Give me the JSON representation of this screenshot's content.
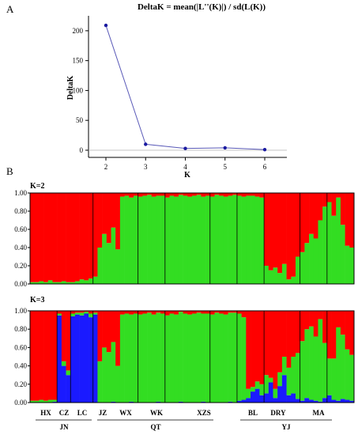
{
  "chart_data": [
    {
      "type": "line",
      "panel_label": "A",
      "title": "DeltaK = mean(|L''(K)|) / sd(L(K))",
      "xlabel": "K",
      "ylabel": "DeltaK",
      "x": [
        2,
        3,
        4,
        5,
        6
      ],
      "y": [
        209,
        10,
        3,
        4,
        1
      ],
      "xticks": [
        "2",
        "3",
        "4",
        "5",
        "6"
      ],
      "yticks": [
        0,
        50,
        100,
        150,
        200
      ],
      "ylim": [
        -12,
        225
      ],
      "line_color": "#5a5ab8",
      "point_color": "#1a1aa0"
    },
    {
      "type": "bar",
      "panel_label": "B",
      "subtitle": "K=2",
      "yticks": [
        "0.00",
        "0.20",
        "0.40",
        "0.60",
        "0.80",
        "1.00"
      ],
      "ylim": [
        0,
        1
      ],
      "cluster_colors": [
        "#33dd22",
        "#ff0000"
      ],
      "series": [
        {
          "values": [
            0.02,
            0.02,
            0.03,
            0.02,
            0.04,
            0.02,
            0.02,
            0.03,
            0.02,
            0.02,
            0.03,
            0.05,
            0.04,
            0.06,
            0.08,
            0.4,
            0.55,
            0.45,
            0.62,
            0.38,
            0.96,
            0.97,
            0.95,
            0.97,
            0.96,
            0.97,
            0.98,
            0.96,
            0.97,
            0.97,
            0.95,
            0.97,
            0.96,
            0.98,
            0.97,
            0.96,
            0.97,
            0.98,
            0.96,
            0.97,
            0.96,
            0.98,
            0.97,
            0.96,
            0.97,
            0.98,
            0.97,
            0.96,
            0.97,
            0.97,
            0.96,
            0.95,
            0.2,
            0.15,
            0.18,
            0.12,
            0.22,
            0.05,
            0.08,
            0.3,
            0.35,
            0.45,
            0.55,
            0.5,
            0.7,
            0.85,
            0.9,
            0.75,
            0.95,
            0.65,
            0.42,
            0.4
          ]
        },
        {
          "values": [
            0.98,
            0.98,
            0.97,
            0.98,
            0.96,
            0.98,
            0.98,
            0.97,
            0.98,
            0.98,
            0.97,
            0.95,
            0.96,
            0.94,
            0.92,
            0.6,
            0.45,
            0.55,
            0.38,
            0.62,
            0.04,
            0.03,
            0.05,
            0.03,
            0.04,
            0.03,
            0.02,
            0.04,
            0.03,
            0.03,
            0.05,
            0.03,
            0.04,
            0.02,
            0.03,
            0.04,
            0.03,
            0.02,
            0.04,
            0.03,
            0.04,
            0.02,
            0.03,
            0.04,
            0.03,
            0.02,
            0.03,
            0.04,
            0.03,
            0.03,
            0.04,
            0.05,
            0.8,
            0.85,
            0.82,
            0.88,
            0.78,
            0.95,
            0.92,
            0.7,
            0.65,
            0.55,
            0.45,
            0.5,
            0.3,
            0.15,
            0.1,
            0.25,
            0.05,
            0.35,
            0.58,
            0.6
          ]
        }
      ],
      "separators": [
        14,
        24,
        30,
        40,
        46,
        52,
        60,
        66
      ]
    },
    {
      "type": "bar",
      "subtitle": "K=3",
      "yticks": [
        "0.00",
        "0.20",
        "0.40",
        "0.60",
        "0.80",
        "1.00"
      ],
      "ylim": [
        0,
        1
      ],
      "cluster_colors": [
        "#1a1aff",
        "#33dd22",
        "#ff0000"
      ],
      "series": [
        {
          "values": [
            0.0,
            0.0,
            0.0,
            0.0,
            0.0,
            0.01,
            0.95,
            0.4,
            0.3,
            0.94,
            0.96,
            0.95,
            0.97,
            0.93,
            0.96,
            0.0,
            0.0,
            0.0,
            0.01,
            0.0,
            0.0,
            0.0,
            0.01,
            0.0,
            0.0,
            0.0,
            0.0,
            0.0,
            0.01,
            0.0,
            0.0,
            0.0,
            0.0,
            0.01,
            0.0,
            0.0,
            0.0,
            0.0,
            0.01,
            0.0,
            0.0,
            0.0,
            0.0,
            0.0,
            0.01,
            0.0,
            0.02,
            0.03,
            0.05,
            0.12,
            0.15,
            0.08,
            0.1,
            0.22,
            0.05,
            0.18,
            0.3,
            0.08,
            0.1,
            0.04,
            0.02,
            0.05,
            0.03,
            0.02,
            0.01,
            0.05,
            0.08,
            0.03,
            0.02,
            0.04,
            0.03,
            0.02
          ]
        },
        {
          "values": [
            0.02,
            0.02,
            0.03,
            0.02,
            0.03,
            0.02,
            0.02,
            0.05,
            0.05,
            0.03,
            0.02,
            0.03,
            0.02,
            0.04,
            0.02,
            0.45,
            0.6,
            0.55,
            0.65,
            0.4,
            0.96,
            0.97,
            0.95,
            0.97,
            0.96,
            0.97,
            0.98,
            0.96,
            0.97,
            0.97,
            0.95,
            0.97,
            0.96,
            0.98,
            0.97,
            0.96,
            0.97,
            0.98,
            0.96,
            0.97,
            0.96,
            0.98,
            0.97,
            0.96,
            0.97,
            0.98,
            0.95,
            0.9,
            0.1,
            0.05,
            0.08,
            0.12,
            0.2,
            0.05,
            0.1,
            0.15,
            0.2,
            0.3,
            0.4,
            0.5,
            0.65,
            0.75,
            0.8,
            0.7,
            0.9,
            0.6,
            0.4,
            0.45,
            0.8,
            0.7,
            0.55,
            0.5
          ]
        },
        {
          "values": [
            0.98,
            0.98,
            0.97,
            0.98,
            0.97,
            0.97,
            0.03,
            0.55,
            0.65,
            0.03,
            0.02,
            0.02,
            0.01,
            0.03,
            0.02,
            0.55,
            0.4,
            0.45,
            0.34,
            0.6,
            0.04,
            0.03,
            0.04,
            0.03,
            0.04,
            0.03,
            0.02,
            0.04,
            0.02,
            0.03,
            0.05,
            0.03,
            0.04,
            0.01,
            0.03,
            0.04,
            0.03,
            0.02,
            0.03,
            0.03,
            0.04,
            0.02,
            0.03,
            0.04,
            0.02,
            0.02,
            0.03,
            0.07,
            0.85,
            0.83,
            0.77,
            0.8,
            0.7,
            0.73,
            0.85,
            0.67,
            0.5,
            0.62,
            0.5,
            0.46,
            0.33,
            0.2,
            0.17,
            0.28,
            0.09,
            0.35,
            0.52,
            0.52,
            0.18,
            0.26,
            0.42,
            0.48
          ]
        }
      ],
      "separators": [
        6,
        9,
        14,
        24,
        30,
        40,
        46,
        52,
        60,
        66
      ]
    }
  ],
  "populations": {
    "labels": [
      "HX",
      "CZ",
      "LC",
      "JZ",
      "WX",
      "WK",
      "XZS",
      "BL",
      "DRY",
      "MA"
    ],
    "groups": [
      "JN",
      "QT",
      "YJ"
    ]
  }
}
